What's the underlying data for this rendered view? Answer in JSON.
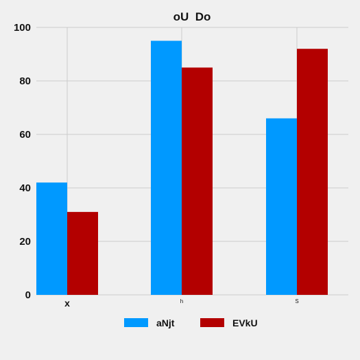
{
  "chart_data": {
    "type": "bar",
    "title": "oU  Do",
    "xlabel": "",
    "ylabel": "",
    "categories": [
      "x",
      "h",
      "S"
    ],
    "category_label_sizes": [
      "large",
      "small",
      "small"
    ],
    "series": [
      {
        "name": "aNjt",
        "values": [
          42,
          95,
          66
        ],
        "color": "#0099ff"
      },
      {
        "name": "EVkU",
        "values": [
          31,
          85,
          92
        ],
        "color": "#b30000"
      }
    ],
    "ylim": [
      0,
      100
    ],
    "yticks": [
      0,
      20,
      40,
      60,
      80,
      100
    ],
    "grid": true,
    "legend": "bottom-center"
  }
}
